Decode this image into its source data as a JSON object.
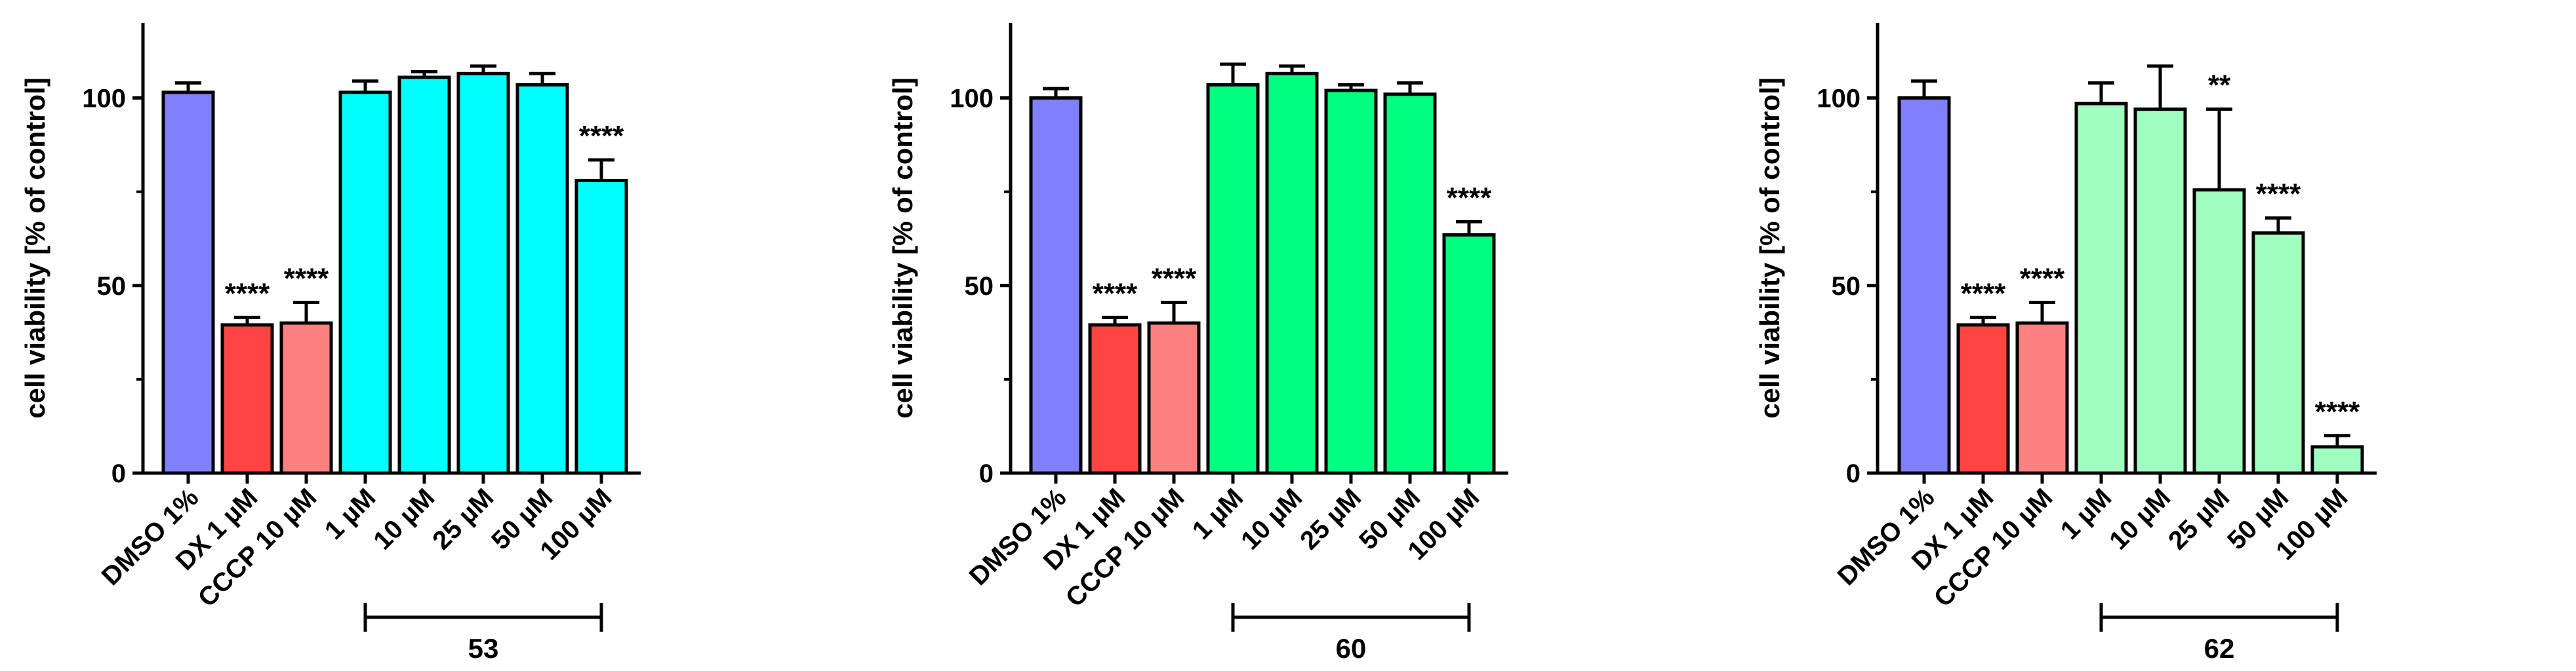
{
  "chart_data": [
    {
      "type": "bar",
      "panel": "left",
      "ylabel": "cell viability [% of control]",
      "ylim": [
        0,
        120
      ],
      "yticks": [
        0,
        50,
        100
      ],
      "categories": [
        "DMSO 1%",
        "DX 1 µM",
        "CCCP 10 µM",
        "1 µM",
        "10 µM",
        "25 µM",
        "50 µM",
        "100 µM"
      ],
      "values": [
        101.5,
        39.5,
        40.0,
        101.5,
        105.5,
        106.5,
        103.5,
        78.0
      ],
      "errors": [
        2.5,
        2.0,
        5.5,
        3.0,
        1.5,
        2.0,
        3.0,
        5.5
      ],
      "significance": [
        "",
        "****",
        "****",
        "",
        "",
        "",
        "",
        "****"
      ],
      "colors": [
        "#8080ff",
        "#ff4444",
        "#ff8080",
        "#00ffff",
        "#00ffff",
        "#00ffff",
        "#00ffff",
        "#00ffff"
      ],
      "group_label": "53",
      "group_indices": [
        3,
        7
      ]
    },
    {
      "type": "bar",
      "panel": "middle",
      "ylabel": "cell viability [% of control]",
      "ylim": [
        0,
        120
      ],
      "yticks": [
        0,
        50,
        100
      ],
      "categories": [
        "DMSO 1%",
        "DX 1 µM",
        "CCCP 10 µM",
        "1 µM",
        "10 µM",
        "25 µM",
        "50 µM",
        "100 µM"
      ],
      "values": [
        100.0,
        39.5,
        40.0,
        103.5,
        106.5,
        102.0,
        101.0,
        63.5
      ],
      "errors": [
        2.5,
        2.0,
        5.5,
        5.5,
        2.0,
        1.5,
        3.0,
        3.5
      ],
      "significance": [
        "",
        "****",
        "****",
        "",
        "",
        "",
        "",
        "****"
      ],
      "colors": [
        "#8080ff",
        "#ff4444",
        "#ff8080",
        "#00ff80",
        "#00ff80",
        "#00ff80",
        "#00ff80",
        "#00ff80"
      ],
      "group_label": "60",
      "group_indices": [
        3,
        7
      ]
    },
    {
      "type": "bar",
      "panel": "right",
      "ylabel": "cell viability [% of control]",
      "ylim": [
        0,
        120
      ],
      "yticks": [
        0,
        50,
        100
      ],
      "categories": [
        "DMSO 1%",
        "DX 1 µM",
        "CCCP 10 µM",
        "1 µM",
        "10 µM",
        "25 µM",
        "50 µM",
        "100 µM"
      ],
      "values": [
        100.0,
        39.5,
        40.0,
        98.5,
        97.0,
        75.5,
        64.0,
        7.0
      ],
      "errors": [
        4.5,
        2.0,
        5.5,
        5.5,
        11.5,
        21.5,
        4.0,
        3.0
      ],
      "significance": [
        "",
        "****",
        "****",
        "",
        "",
        "**",
        "****",
        "****"
      ],
      "colors": [
        "#8080ff",
        "#ff4444",
        "#ff8080",
        "#a0ffc0",
        "#a0ffc0",
        "#a0ffc0",
        "#a0ffc0",
        "#a0ffc0"
      ],
      "group_label": "62",
      "group_indices": [
        3,
        7
      ]
    }
  ]
}
